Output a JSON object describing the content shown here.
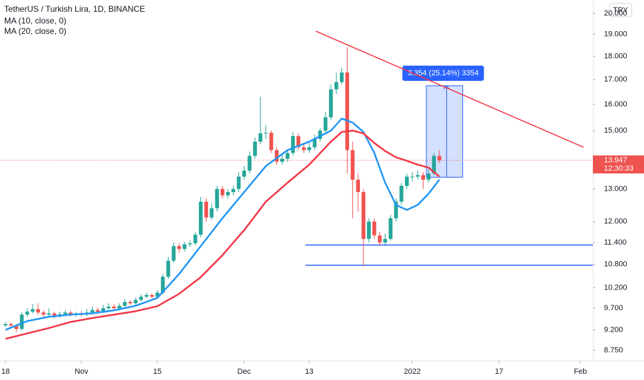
{
  "chart_data": {
    "type": "candlestick",
    "title": "TetherUS / Turkish Lira, 1D, BINANCE",
    "currency": "TRY",
    "log_scale": true,
    "grid": false,
    "up_color": "#26a69a",
    "down_color": "#ef5350",
    "xlim": [
      -1.02,
      108.3
    ],
    "xticks": [
      {
        "value": 0,
        "label": "18"
      },
      {
        "value": 14,
        "label": "Nov"
      },
      {
        "value": 28,
        "label": "15"
      },
      {
        "value": 44,
        "label": "Dec"
      },
      {
        "value": 56,
        "label": "13"
      },
      {
        "value": 75,
        "label": "2022"
      },
      {
        "value": 91,
        "label": "17"
      },
      {
        "value": 106,
        "label": "Feb"
      }
    ],
    "ylim": [
      8.53,
      20.67
    ],
    "yticks": [
      {
        "value": 8.75,
        "label": "8.750"
      },
      {
        "value": 9.2,
        "label": "9.200"
      },
      {
        "value": 9.7,
        "label": "9.700"
      },
      {
        "value": 10.2,
        "label": "10.200"
      },
      {
        "value": 10.8,
        "label": "10.800"
      },
      {
        "value": 11.4,
        "label": "11.400"
      },
      {
        "value": 12,
        "label": "12.000"
      },
      {
        "value": 13,
        "label": "13.000"
      },
      {
        "value": 15,
        "label": "15.000"
      },
      {
        "value": 16,
        "label": "16.000"
      },
      {
        "value": 17,
        "label": "17.000"
      },
      {
        "value": 18,
        "label": "18.000"
      },
      {
        "value": 19,
        "label": "19.000"
      },
      {
        "value": 20,
        "label": "20.000"
      }
    ],
    "candles": {
      "x": [
        0,
        1,
        2,
        3,
        4,
        5,
        6,
        7,
        8,
        9,
        10,
        11,
        12,
        13,
        14,
        15,
        16,
        17,
        18,
        19,
        20,
        21,
        22,
        23,
        24,
        25,
        26,
        27,
        28,
        29,
        30,
        31,
        32,
        33,
        34,
        35,
        36,
        37,
        38,
        39,
        40,
        41,
        42,
        43,
        44,
        45,
        46,
        47,
        48,
        49,
        50,
        51,
        52,
        53,
        54,
        55,
        56,
        57,
        58,
        59,
        60,
        61,
        62,
        63,
        64,
        65,
        66,
        67,
        68,
        69,
        70,
        71,
        72,
        73,
        74,
        75,
        76,
        77,
        78,
        79,
        80
      ],
      "open": [
        9.3,
        9.33,
        9.3,
        9.22,
        9.55,
        9.62,
        9.68,
        9.6,
        9.55,
        9.58,
        9.52,
        9.56,
        9.6,
        9.54,
        9.57,
        9.55,
        9.6,
        9.66,
        9.62,
        9.7,
        9.74,
        9.7,
        9.76,
        9.85,
        9.82,
        9.9,
        9.98,
        10.02,
        9.98,
        10.08,
        10.48,
        10.9,
        11.3,
        11.22,
        11.35,
        11.38,
        11.62,
        12.6,
        12.12,
        12.4,
        13.0,
        12.8,
        12.9,
        13.0,
        13.4,
        13.6,
        14.1,
        14.6,
        14.9,
        14.92,
        14.3,
        13.9,
        14.0,
        14.2,
        14.8,
        14.4,
        14.3,
        14.4,
        14.7,
        15.0,
        15.5,
        16.6,
        16.9,
        17.3,
        14.3,
        13.3,
        12.9,
        11.5,
        12.0,
        11.6,
        11.4,
        11.5,
        12.1,
        12.6,
        13.1,
        13.4,
        13.4,
        13.45,
        13.3,
        13.5,
        14.1
      ],
      "high": [
        9.38,
        9.37,
        9.33,
        9.6,
        9.7,
        9.8,
        9.82,
        9.65,
        9.7,
        9.62,
        9.62,
        9.66,
        9.64,
        9.62,
        9.63,
        9.68,
        9.75,
        9.72,
        9.78,
        9.82,
        9.8,
        9.82,
        9.92,
        9.9,
        9.96,
        10.04,
        10.08,
        10.06,
        10.14,
        10.55,
        11.0,
        11.4,
        11.38,
        11.42,
        11.46,
        11.7,
        12.75,
        12.7,
        12.55,
        13.1,
        13.1,
        13.0,
        13.1,
        13.55,
        13.75,
        14.25,
        14.75,
        16.3,
        15.2,
        15.0,
        14.4,
        14.15,
        14.3,
        14.95,
        14.9,
        14.5,
        14.55,
        14.85,
        15.1,
        15.7,
        16.8,
        17.3,
        17.5,
        18.4,
        14.6,
        13.5,
        13.0,
        12.1,
        12.1,
        11.7,
        11.65,
        12.2,
        12.7,
        13.2,
        13.5,
        13.55,
        13.6,
        13.55,
        13.65,
        14.2,
        14.3
      ],
      "low": [
        9.26,
        9.27,
        9.15,
        9.18,
        9.5,
        9.58,
        9.55,
        9.5,
        9.5,
        9.47,
        9.48,
        9.52,
        9.5,
        9.5,
        9.5,
        9.52,
        9.56,
        9.58,
        9.6,
        9.66,
        9.64,
        9.66,
        9.72,
        9.78,
        9.78,
        9.86,
        9.94,
        9.94,
        9.94,
        10.04,
        10.42,
        10.85,
        11.12,
        11.15,
        11.28,
        11.32,
        11.55,
        12.0,
        12.05,
        12.3,
        12.7,
        12.7,
        12.8,
        12.9,
        13.3,
        13.5,
        14.0,
        14.5,
        14.7,
        14.2,
        13.8,
        13.8,
        13.9,
        14.1,
        14.3,
        14.2,
        14.2,
        14.3,
        14.6,
        14.9,
        15.4,
        16.4,
        16.8,
        13.5,
        12.1,
        12.3,
        10.75,
        11.4,
        11.5,
        11.3,
        11.3,
        11.45,
        12.0,
        12.5,
        13.0,
        13.25,
        13.3,
        13.0,
        13.2,
        13.45,
        13.85
      ],
      "close": [
        9.33,
        9.3,
        9.22,
        9.55,
        9.62,
        9.68,
        9.6,
        9.55,
        9.58,
        9.52,
        9.56,
        9.6,
        9.54,
        9.57,
        9.55,
        9.6,
        9.66,
        9.62,
        9.7,
        9.74,
        9.7,
        9.76,
        9.85,
        9.82,
        9.9,
        9.98,
        10.02,
        9.98,
        10.08,
        10.48,
        10.9,
        11.3,
        11.22,
        11.35,
        11.38,
        11.62,
        12.6,
        12.12,
        12.4,
        13.0,
        12.8,
        12.9,
        13.0,
        13.4,
        13.6,
        14.1,
        14.6,
        14.9,
        14.92,
        14.3,
        13.9,
        14.0,
        14.2,
        14.8,
        14.4,
        14.3,
        14.4,
        14.7,
        15.0,
        15.5,
        16.6,
        16.9,
        17.3,
        14.3,
        13.3,
        12.9,
        11.5,
        12.0,
        11.6,
        11.4,
        11.5,
        12.1,
        12.6,
        13.1,
        13.4,
        13.4,
        13.45,
        13.3,
        13.5,
        14.1,
        13.947
      ]
    },
    "series": [
      {
        "name": "MA (10, close, 0)",
        "color": "#2196f3",
        "x": [
          0,
          4,
          8,
          12,
          16,
          20,
          24,
          28,
          32,
          36,
          40,
          44,
          48,
          52,
          56,
          60,
          62,
          64,
          66,
          68,
          70,
          72,
          74,
          76,
          78,
          80
        ],
        "values": [
          9.2,
          9.4,
          9.5,
          9.55,
          9.58,
          9.65,
          9.76,
          9.95,
          10.55,
          11.3,
          12.1,
          12.9,
          13.75,
          14.3,
          14.6,
          15.0,
          15.45,
          15.3,
          14.95,
          14.2,
          13.2,
          12.5,
          12.35,
          12.5,
          12.85,
          13.3
        ]
      },
      {
        "name": "MA (20, close, 0)",
        "color": "#f23645",
        "x": [
          0,
          4,
          8,
          12,
          16,
          20,
          24,
          28,
          32,
          36,
          40,
          44,
          48,
          52,
          56,
          60,
          62,
          64,
          66,
          68,
          70,
          72,
          74,
          76,
          78,
          80
        ],
        "values": [
          9.0,
          9.12,
          9.24,
          9.38,
          9.47,
          9.55,
          9.63,
          9.75,
          10.05,
          10.47,
          11.05,
          11.75,
          12.6,
          13.2,
          13.8,
          14.6,
          14.95,
          15.0,
          14.9,
          14.55,
          14.27,
          14.05,
          13.93,
          13.8,
          13.7,
          13.4
        ]
      }
    ],
    "last_price": 13.947,
    "countdown": "12:30:33",
    "trendline": {
      "color": "#f23645",
      "x": [
        57.2,
        106.6
      ],
      "y": [
        19.15,
        14.4
      ]
    },
    "hlines": {
      "color": "#2962ff",
      "x": [
        55.3,
        108.3
      ],
      "values": [
        11.33,
        10.78
      ]
    },
    "measure": {
      "color": "#2962ff",
      "x": [
        77.6,
        84.3
      ],
      "y": [
        13.38,
        16.75
      ],
      "label": "3.354 (25.14%) 3354"
    }
  }
}
